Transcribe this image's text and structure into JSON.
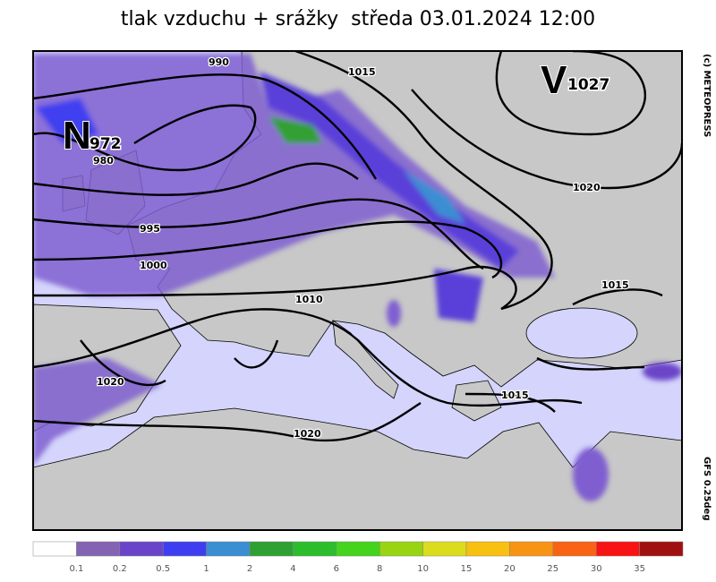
{
  "title": "tlak vzduchu + srážky  středa 03.01.2024 12:00",
  "copyright": "(c) METEOPRESS",
  "model": "GFS 0.25deg",
  "pressure_centers": [
    {
      "letter": "N",
      "value": "972"
    },
    {
      "letter": "V",
      "value": "1027"
    }
  ],
  "isobar_labels": [
    "990",
    "980",
    "995",
    "1000",
    "1010",
    "1015",
    "1020",
    "1020",
    "1015",
    "1020",
    "1015"
  ],
  "legend": {
    "colors": [
      "#ffffff",
      "#8462b4",
      "#6a44c8",
      "#3e3ef0",
      "#3a8ed2",
      "#2fa032",
      "#2cbd2c",
      "#44d41e",
      "#98d412",
      "#dcdc1e",
      "#f8c010",
      "#f89414",
      "#f86414",
      "#f81414",
      "#a01010"
    ],
    "labels": [
      "0.1",
      "0.2",
      "0.5",
      "1",
      "2",
      "4",
      "6",
      "8",
      "10",
      "15",
      "20",
      "25",
      "30",
      "35"
    ]
  }
}
